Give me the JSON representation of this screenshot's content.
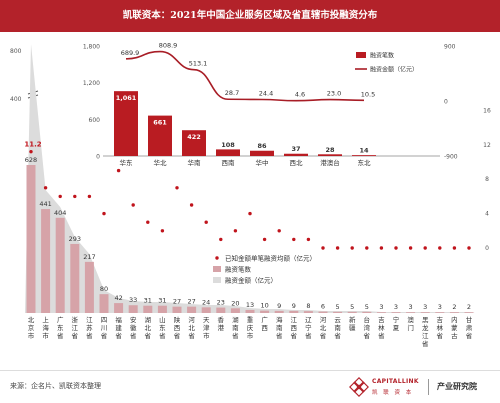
{
  "header": {
    "title": "凯联资本：2021年中国企业服务区域及省直辖市投融资分布"
  },
  "footer": {
    "source": "来源：企名片、凯联资本整理",
    "logo_en": "CAPITALLINK",
    "logo_cn": "凯 联 资 本",
    "institute": "产业研究院"
  },
  "colors": {
    "brand": "#b3222a",
    "bar_main": "#b91c22",
    "bar_province": "#d6a3a8",
    "area_fill": "#dcdcdc",
    "dot": "#c0141c",
    "line": "#a81d26"
  },
  "chart_data": [
    {
      "type": "bar",
      "title": "",
      "categories": [
        "华东",
        "华北",
        "华南",
        "西南",
        "华中",
        "西北",
        "港澳台",
        "东北"
      ],
      "series": [
        {
          "name": "融资笔数",
          "type": "bar",
          "axis": "left",
          "values": [
            1061,
            661,
            422,
            108,
            86,
            37,
            28,
            14
          ]
        },
        {
          "name": "融资金额（亿元）",
          "type": "line",
          "axis": "right",
          "values": [
            689.9,
            808.9,
            513.1,
            28.7,
            24.4,
            4.6,
            23.0,
            10.5
          ]
        }
      ],
      "bar_labels": [
        "1,061",
        "661",
        "422",
        "108",
        "86",
        "37",
        "28",
        "14"
      ],
      "line_labels": [
        "689.9",
        "808.9",
        "513.1",
        "28.7",
        "24.4",
        "4.6",
        "23.0",
        "10.5"
      ],
      "left_axis": {
        "ticks": [
          "0",
          "600",
          "1,200",
          "1,800"
        ],
        "ylim": [
          0,
          1800
        ]
      },
      "right_axis": {
        "ticks": [
          "-900",
          "0",
          "900"
        ],
        "ylim": [
          -900,
          900
        ]
      },
      "legend": {
        "position": "right",
        "items": [
          "融资笔数",
          "融资金额（亿元）"
        ]
      }
    },
    {
      "type": "bar",
      "title": "",
      "categories": [
        "北京市",
        "上海市",
        "广东省",
        "浙江省",
        "江苏省",
        "四川省",
        "福建省",
        "安徽省",
        "湖北省",
        "山东省",
        "陕西省",
        "河北省",
        "天津市",
        "香港",
        "湖南省",
        "重庆市",
        "广西",
        "海南省",
        "江西省",
        "辽宁省",
        "河北省",
        "云南省",
        "新疆",
        "台湾省",
        "吉林省",
        "宁夏",
        "澳门",
        "黑龙江省",
        "吉林省",
        "内蒙古",
        "甘肃省"
      ],
      "series": [
        {
          "name": "融资笔数",
          "type": "bar",
          "axis": "left",
          "values": [
            628,
            441,
            404,
            293,
            217,
            80,
            42,
            33,
            31,
            31,
            27,
            27,
            24,
            23,
            20,
            13,
            10,
            9,
            9,
            8,
            6,
            5,
            5,
            5,
            3,
            3,
            3,
            3,
            3,
            2,
            2
          ]
        },
        {
          "name": "融资金额（亿元）",
          "type": "area",
          "axis": "left",
          "values": [
            808.9,
            380,
            320,
            230,
            170,
            70,
            38,
            30,
            28,
            26,
            24,
            22,
            20,
            18,
            16,
            11,
            8,
            7,
            6,
            5,
            4,
            4,
            3,
            3,
            2,
            2,
            2,
            2,
            2,
            1,
            1
          ]
        },
        {
          "name": "已知金额单笔融资均额（亿元）",
          "type": "scatter",
          "axis": "right",
          "values": [
            11.2,
            7,
            6,
            6,
            6,
            4,
            9,
            5,
            3,
            2,
            7,
            5,
            3,
            1,
            2,
            4,
            1,
            2,
            1,
            1,
            0,
            0,
            0,
            0,
            0,
            0,
            0,
            0,
            0,
            0,
            0
          ]
        }
      ],
      "bar_labels": [
        "628",
        "441",
        "404",
        "293",
        "217",
        "80",
        "42",
        "33",
        "31",
        "31",
        "27",
        "27",
        "24",
        "23",
        "20",
        "13",
        "10",
        "9",
        "9",
        "8",
        "6",
        "5",
        "5",
        "5",
        "3",
        "3",
        "3",
        "3",
        "3",
        "2",
        "2"
      ],
      "scatter_label": "11.2",
      "left_axis": {
        "ticks": [
          "0",
          "400",
          "800"
        ],
        "ylim": [
          0,
          800
        ],
        "break": true
      },
      "right_axis": {
        "ticks": [
          "0",
          "4",
          "8",
          "12",
          "16"
        ],
        "ylim": [
          0,
          16
        ]
      },
      "legend": {
        "position": "center-right",
        "items": [
          "已知金额单笔融资均额（亿元）",
          "融资笔数",
          "融资金额（亿元）"
        ]
      }
    }
  ]
}
